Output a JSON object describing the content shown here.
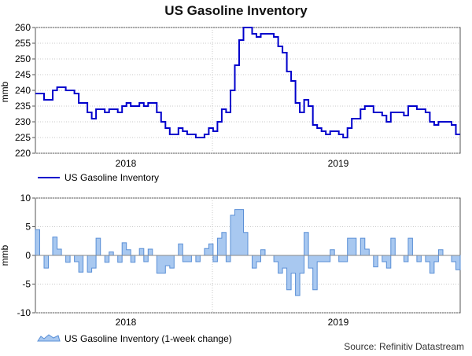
{
  "title": "US Gasoline Inventory",
  "source": "Source: Refinitiv Datastream",
  "chart_data": [
    {
      "type": "line",
      "ylabel": "mmb",
      "ylim": [
        220,
        260
      ],
      "yticks": [
        220,
        225,
        230,
        235,
        240,
        245,
        250,
        255,
        260
      ],
      "grid": true,
      "legend_placement": "bottom-left",
      "x_labels": [
        "2018",
        "2019"
      ],
      "color": "#0000cc",
      "series": [
        {
          "name": "US Gasoline Inventory",
          "values": [
            239,
            239,
            237,
            237,
            240,
            241,
            241,
            240,
            240,
            239,
            236,
            236,
            233,
            231,
            234,
            234,
            233,
            234,
            234,
            233,
            235,
            236,
            235,
            235,
            236,
            235,
            236,
            236,
            233,
            230,
            228,
            226,
            226,
            228,
            227,
            226,
            226,
            225,
            225,
            226,
            228,
            227,
            230,
            234,
            233,
            240,
            248,
            256,
            260,
            260,
            258,
            257,
            258,
            258,
            258,
            257,
            254,
            252,
            246,
            243,
            236,
            233,
            237,
            235,
            229,
            228,
            227,
            226,
            227,
            227,
            226,
            225,
            228,
            231,
            231,
            234,
            235,
            235,
            233,
            233,
            232,
            230,
            233,
            233,
            233,
            232,
            235,
            235,
            234,
            234,
            233,
            230,
            229,
            230,
            230,
            230,
            229,
            226
          ]
        }
      ]
    },
    {
      "type": "area",
      "ylabel": "mmb",
      "ylim": [
        -10,
        10
      ],
      "yticks": [
        -10,
        -5,
        0,
        5,
        10
      ],
      "grid": true,
      "legend_placement": "bottom-left",
      "x_labels": [
        "2018",
        "2019"
      ],
      "fill_color": "#a8c8f0",
      "stroke_color": "#5a8fd6",
      "series": [
        {
          "name": "US Gasoline Inventory (1-week change)",
          "values": [
            4.5,
            0,
            -2.2,
            0,
            3.2,
            1.1,
            0,
            -1.2,
            0,
            -1.1,
            -2.9,
            0,
            -2.9,
            -2.2,
            3.0,
            0,
            -1.2,
            0.6,
            0,
            -1.2,
            2.2,
            1.0,
            -1.2,
            0,
            1.2,
            -1.1,
            1.1,
            0,
            -3.1,
            -3.1,
            -1.8,
            -2.2,
            0,
            2.0,
            -1.1,
            -1.1,
            0,
            -1.1,
            0,
            1.2,
            2.0,
            -1.1,
            3.0,
            4.0,
            -1.1,
            7.0,
            8.0,
            8.0,
            4.0,
            0,
            -2.2,
            -1.1,
            1.0,
            0,
            0,
            -1.1,
            -3.1,
            -2.2,
            -6.0,
            -3.1,
            -7.0,
            -3.1,
            4.0,
            -2.2,
            -6.0,
            -1.1,
            -1.1,
            -1.1,
            1.0,
            0,
            -1.1,
            -1.1,
            3.0,
            3.0,
            0,
            3.0,
            1.1,
            0,
            -2.0,
            0,
            -1.1,
            -2.2,
            3.0,
            0,
            0,
            -1.1,
            3.0,
            0,
            -1.1,
            0,
            -1.1,
            -3.1,
            -1.1,
            1.0,
            0,
            0,
            -1.1,
            -2.5
          ]
        }
      ]
    }
  ]
}
